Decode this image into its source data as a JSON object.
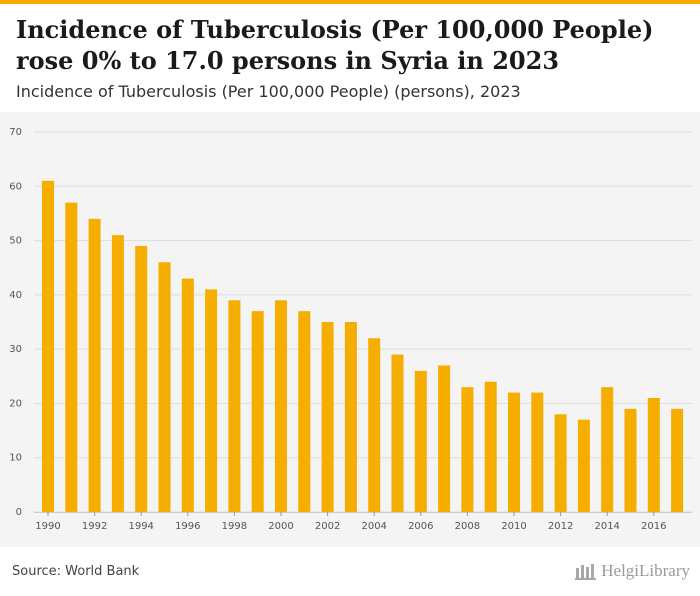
{
  "header": {
    "title": "Incidence of Tuberculosis (Per 100,000 People) rose 0% to 17.0 persons in Syria in 2023",
    "subtitle": "Incidence of Tuberculosis (Per 100,000 People) (persons), 2023"
  },
  "footer": {
    "source": "Source: World Bank",
    "brand": "HelgiLibrary"
  },
  "colors": {
    "bar": "#f5ad00",
    "accent": "#f5a800",
    "grid": "#dddddd",
    "axis_text": "#555555",
    "plot_background": "#f4f4f4"
  },
  "chart_data": {
    "type": "bar",
    "title": "",
    "xlabel": "",
    "ylabel": "",
    "ylim": [
      0,
      70
    ],
    "yticks": [
      0,
      10,
      20,
      30,
      40,
      50,
      60,
      70
    ],
    "grid": "horizontal",
    "categories": [
      1990,
      1991,
      1992,
      1993,
      1994,
      1995,
      1996,
      1997,
      1998,
      1999,
      2000,
      2001,
      2002,
      2003,
      2004,
      2005,
      2006,
      2007,
      2008,
      2009,
      2010,
      2011,
      2012,
      2013,
      2014,
      2015,
      2016,
      2017
    ],
    "xtick_labels": [
      "1990",
      "1992",
      "1994",
      "1996",
      "1998",
      "2000",
      "2002",
      "2004",
      "2006",
      "2008",
      "2010",
      "2012",
      "2014",
      "2016"
    ],
    "values": [
      61,
      57,
      54,
      51,
      49,
      46,
      43,
      41,
      39,
      37,
      39,
      37,
      35,
      35,
      32,
      29,
      26,
      27,
      23,
      24,
      22,
      22,
      18,
      17,
      23,
      19,
      21,
      19
    ]
  }
}
